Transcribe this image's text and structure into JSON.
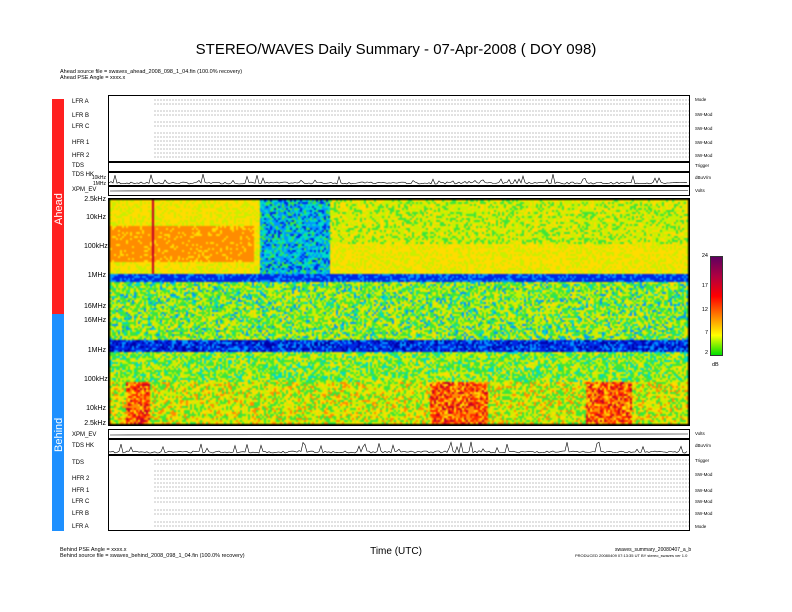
{
  "title": "STEREO/WAVES Daily Summary - 07-Apr-2008 ( DOY 098)",
  "header": {
    "ahead_source": "Ahead source file = swaves_ahead_2008_098_1_04.fin (100.0% recovery)",
    "ahead_pse": "Ahead PSE Angle = xxxx.x"
  },
  "side_labels": {
    "ahead": "Ahead",
    "behind": "Behind"
  },
  "colors": {
    "ahead": "#ff2020",
    "behind": "#1e90ff"
  },
  "ahead_panels": [
    {
      "label": "LFR A",
      "unit": "Mode"
    },
    {
      "label": "LFR B",
      "unit": "SW-Mod"
    },
    {
      "label": "LFR C",
      "unit": "SW-Mod"
    },
    {
      "label": "HFR 1",
      "unit": "SW-Mod"
    },
    {
      "label": "HFR 2",
      "unit": "SW-Mod"
    },
    {
      "label": "TDS",
      "unit": "Trigger"
    },
    {
      "label": "TDS HK",
      "unit": "dBuV/m"
    },
    {
      "label": "XPM_EV",
      "unit": "Volts"
    }
  ],
  "behind_panels": [
    {
      "label": "XPM_EV",
      "unit": "Volts"
    },
    {
      "label": "TDS HK",
      "unit": "dBuV/m"
    },
    {
      "label": "TDS",
      "unit": "Trigger"
    },
    {
      "label": "HFR 2",
      "unit": "SW-Mod"
    },
    {
      "label": "HFR 1",
      "unit": "SW-Mod"
    },
    {
      "label": "LFR C",
      "unit": "SW-Mod"
    },
    {
      "label": "LFR B",
      "unit": "SW-Mod"
    },
    {
      "label": "LFR A",
      "unit": "Mode"
    }
  ],
  "trace_freqs": {
    "a": "10kHz",
    "b": "1MHz"
  },
  "chart_data": {
    "type": "heatmap",
    "title": "STEREO/WAVES Daily Summary - 07-Apr-2008 ( DOY 098)",
    "xlabel": "Time (UTC)",
    "ahead_freq_ticks": [
      "2.5kHz",
      "10kHz",
      "100kHz",
      "1MHz",
      "16MHz"
    ],
    "behind_freq_ticks": [
      "16MHz",
      "1MHz",
      "100kHz",
      "10kHz",
      "2.5kHz"
    ],
    "colorbar": {
      "unit": "dB",
      "ticks": [
        24,
        17,
        12,
        7,
        2
      ],
      "range": [
        2,
        24
      ]
    }
  },
  "footer": {
    "behind_pse": "Behind PSE Angle = xxxx.x",
    "behind_source": "Behind source file = swaves_behind_2008_098_1_04.fin (100.0% recovery)",
    "file_id": "swaves_summary_20080407_a_b",
    "produced": "PRODUCED 20080409 07:13:35 UT BY stereo_swaves ver 1.0"
  }
}
